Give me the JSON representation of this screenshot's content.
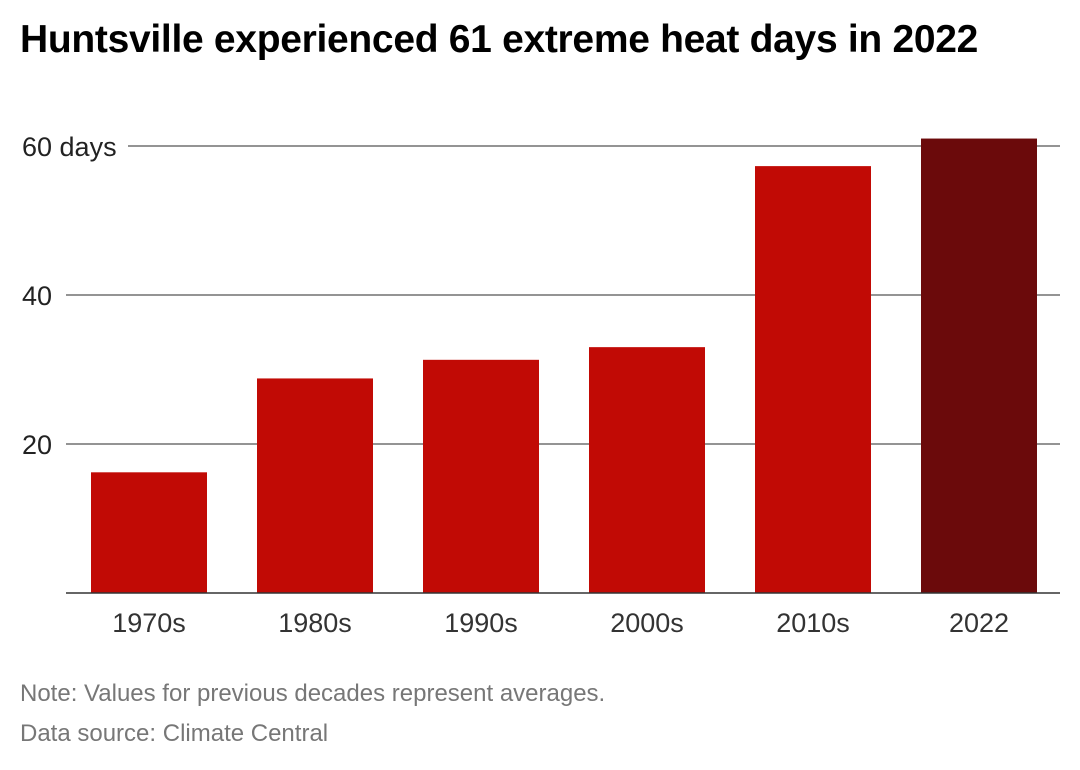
{
  "chart_data": {
    "type": "bar",
    "title": "Huntsville experienced 61 extreme heat days in 2022",
    "categories": [
      "1970s",
      "1980s",
      "1990s",
      "2000s",
      "2010s",
      "2022"
    ],
    "values": [
      16.2,
      28.8,
      31.3,
      33.0,
      57.3,
      61.0
    ],
    "bar_colors": [
      "#c10a05",
      "#c10a05",
      "#c10a05",
      "#c10a05",
      "#c10a05",
      "#6b0a0b"
    ],
    "ylim": [
      0,
      60
    ],
    "yticks": [
      20,
      40,
      60
    ],
    "ytick_labels": [
      "20",
      "40",
      "60 days"
    ],
    "grid": true,
    "xlabel": "",
    "ylabel": ""
  },
  "footer": {
    "note": "Note: Values for previous decades represent averages.",
    "source": "Data source: Climate Central"
  }
}
